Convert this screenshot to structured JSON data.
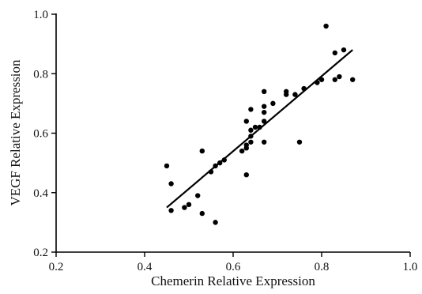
{
  "chart_data": {
    "type": "scatter",
    "xlabel": "Chemerin Relative Expression",
    "ylabel": "VEGF Relative Expression",
    "xlim": [
      0.2,
      1.0
    ],
    "ylim": [
      0.2,
      1.0
    ],
    "x_ticks": [
      "0.2",
      "0.4",
      "0.6",
      "0.8",
      "1.0"
    ],
    "y_ticks": [
      "0.2",
      "0.4",
      "0.6",
      "0.8",
      "1.0"
    ],
    "grid": false,
    "legend": "none",
    "series": [
      {
        "points": [
          [
            0.45,
            0.49
          ],
          [
            0.46,
            0.43
          ],
          [
            0.46,
            0.34
          ],
          [
            0.49,
            0.35
          ],
          [
            0.5,
            0.36
          ],
          [
            0.52,
            0.39
          ],
          [
            0.53,
            0.54
          ],
          [
            0.53,
            0.33
          ],
          [
            0.55,
            0.47
          ],
          [
            0.56,
            0.49
          ],
          [
            0.56,
            0.3
          ],
          [
            0.57,
            0.5
          ],
          [
            0.58,
            0.51
          ],
          [
            0.62,
            0.54
          ],
          [
            0.63,
            0.64
          ],
          [
            0.63,
            0.56
          ],
          [
            0.63,
            0.55
          ],
          [
            0.63,
            0.46
          ],
          [
            0.64,
            0.68
          ],
          [
            0.64,
            0.61
          ],
          [
            0.64,
            0.59
          ],
          [
            0.64,
            0.57
          ],
          [
            0.65,
            0.62
          ],
          [
            0.66,
            0.62
          ],
          [
            0.67,
            0.74
          ],
          [
            0.67,
            0.69
          ],
          [
            0.67,
            0.67
          ],
          [
            0.67,
            0.64
          ],
          [
            0.67,
            0.57
          ],
          [
            0.69,
            0.7
          ],
          [
            0.72,
            0.74
          ],
          [
            0.72,
            0.73
          ],
          [
            0.74,
            0.73
          ],
          [
            0.75,
            0.57
          ],
          [
            0.76,
            0.75
          ],
          [
            0.79,
            0.77
          ],
          [
            0.8,
            0.78
          ],
          [
            0.81,
            0.96
          ],
          [
            0.83,
            0.87
          ],
          [
            0.83,
            0.78
          ],
          [
            0.84,
            0.79
          ],
          [
            0.85,
            0.88
          ],
          [
            0.87,
            0.78
          ]
        ]
      }
    ],
    "fit_line": {
      "x": [
        0.45,
        0.87
      ],
      "y": [
        0.35,
        0.88
      ]
    }
  }
}
